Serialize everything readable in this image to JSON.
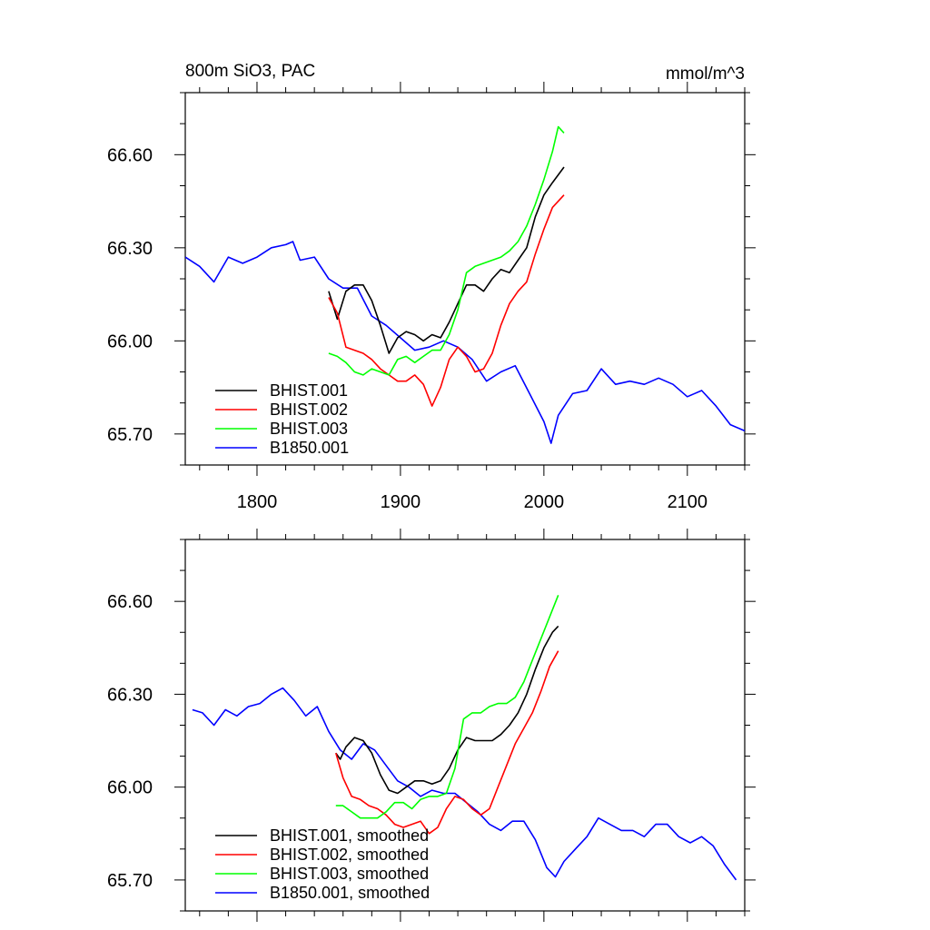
{
  "figure": {
    "title_left": "800m SiO3, PAC",
    "title_right": "mmol/m^3"
  },
  "chart_data": [
    {
      "type": "line",
      "title": "800m SiO3, PAC",
      "units": "mmol/m^3",
      "xlim": [
        1750,
        2140
      ],
      "ylim": [
        65.6,
        66.8
      ],
      "x_ticks": [
        1800,
        1900,
        2000,
        2100
      ],
      "x_tick_labels": [
        "1800",
        "1900",
        "2000",
        "2100"
      ],
      "y_ticks": [
        65.7,
        66.0,
        66.3,
        66.6
      ],
      "y_tick_labels": [
        "65.70",
        "66.00",
        "66.30",
        "66.60"
      ],
      "grid": false,
      "legend_position": "bottom-left",
      "series": [
        {
          "name": "BHIST.001",
          "color": "#000000",
          "x": [
            1850,
            1856,
            1862,
            1868,
            1874,
            1880,
            1886,
            1892,
            1898,
            1904,
            1910,
            1916,
            1922,
            1928,
            1934,
            1940,
            1946,
            1952,
            1958,
            1964,
            1970,
            1976,
            1982,
            1988,
            1994,
            2000,
            2006,
            2014
          ],
          "y": [
            66.16,
            66.07,
            66.16,
            66.18,
            66.18,
            66.13,
            66.05,
            65.96,
            66.01,
            66.03,
            66.02,
            66.0,
            66.02,
            66.01,
            66.06,
            66.12,
            66.18,
            66.18,
            66.16,
            66.2,
            66.23,
            66.22,
            66.26,
            66.3,
            66.4,
            66.47,
            66.51,
            66.56
          ]
        },
        {
          "name": "BHIST.002",
          "color": "#ff0000",
          "x": [
            1850,
            1856,
            1862,
            1868,
            1874,
            1880,
            1886,
            1892,
            1898,
            1904,
            1910,
            1916,
            1922,
            1928,
            1934,
            1940,
            1946,
            1952,
            1958,
            1964,
            1970,
            1976,
            1982,
            1988,
            1994,
            2000,
            2006,
            2014
          ],
          "y": [
            66.14,
            66.09,
            65.98,
            65.97,
            65.96,
            65.94,
            65.91,
            65.89,
            65.87,
            65.87,
            65.89,
            65.86,
            65.79,
            65.85,
            65.94,
            65.98,
            65.95,
            65.9,
            65.91,
            65.96,
            66.05,
            66.12,
            66.16,
            66.19,
            66.28,
            66.36,
            66.43,
            66.47
          ]
        },
        {
          "name": "BHIST.003",
          "color": "#00ff00",
          "x": [
            1850,
            1856,
            1862,
            1868,
            1874,
            1880,
            1886,
            1892,
            1898,
            1904,
            1910,
            1916,
            1922,
            1928,
            1934,
            1940,
            1946,
            1952,
            1958,
            1964,
            1970,
            1976,
            1982,
            1988,
            1994,
            2000,
            2006,
            2010,
            2014
          ],
          "y": [
            65.96,
            65.95,
            65.93,
            65.9,
            65.89,
            65.91,
            65.9,
            65.89,
            65.94,
            65.95,
            65.93,
            65.95,
            65.97,
            65.97,
            66.02,
            66.1,
            66.22,
            66.24,
            66.25,
            66.26,
            66.27,
            66.29,
            66.32,
            66.37,
            66.44,
            66.52,
            66.61,
            66.69,
            66.67
          ]
        },
        {
          "name": "B1850.001",
          "color": "#0000ff",
          "x": [
            1750,
            1760,
            1770,
            1780,
            1790,
            1800,
            1810,
            1820,
            1825,
            1830,
            1840,
            1850,
            1860,
            1870,
            1880,
            1890,
            1900,
            1910,
            1920,
            1930,
            1940,
            1950,
            1960,
            1970,
            1980,
            1990,
            2000,
            2005,
            2010,
            2020,
            2030,
            2040,
            2050,
            2060,
            2070,
            2080,
            2090,
            2100,
            2110,
            2120,
            2130,
            2140
          ],
          "y": [
            66.27,
            66.24,
            66.19,
            66.27,
            66.25,
            66.27,
            66.3,
            66.31,
            66.32,
            66.26,
            66.27,
            66.2,
            66.17,
            66.17,
            66.08,
            66.05,
            66.01,
            65.97,
            65.98,
            66.0,
            65.98,
            65.94,
            65.87,
            65.9,
            65.92,
            65.83,
            65.74,
            65.67,
            65.76,
            65.83,
            65.84,
            65.91,
            65.86,
            65.87,
            65.86,
            65.88,
            65.86,
            65.82,
            65.84,
            65.79,
            65.73,
            65.71
          ]
        }
      ]
    },
    {
      "type": "line",
      "xlim": [
        1750,
        2140
      ],
      "ylim": [
        65.6,
        66.8
      ],
      "x_ticks": [
        1800,
        1900,
        2000,
        2100
      ],
      "y_ticks": [
        65.7,
        66.0,
        66.3,
        66.6
      ],
      "y_tick_labels": [
        "65.70",
        "66.00",
        "66.30",
        "66.60"
      ],
      "grid": false,
      "legend_position": "bottom-left",
      "series": [
        {
          "name": "BHIST.001, smoothed",
          "color": "#000000",
          "x": [
            1855,
            1858,
            1862,
            1868,
            1874,
            1880,
            1886,
            1892,
            1898,
            1904,
            1910,
            1916,
            1922,
            1928,
            1934,
            1940,
            1946,
            1952,
            1958,
            1964,
            1970,
            1976,
            1982,
            1988,
            1994,
            2000,
            2006,
            2010
          ],
          "y": [
            66.11,
            66.09,
            66.13,
            66.16,
            66.15,
            66.11,
            66.04,
            65.99,
            65.98,
            66.0,
            66.02,
            66.02,
            66.01,
            66.02,
            66.06,
            66.12,
            66.16,
            66.15,
            66.15,
            66.15,
            66.17,
            66.2,
            66.24,
            66.3,
            66.38,
            66.45,
            66.5,
            66.52
          ]
        },
        {
          "name": "BHIST.002, smoothed",
          "color": "#ff0000",
          "x": [
            1855,
            1860,
            1866,
            1872,
            1878,
            1884,
            1890,
            1896,
            1902,
            1908,
            1914,
            1920,
            1926,
            1932,
            1938,
            1944,
            1950,
            1956,
            1962,
            1968,
            1974,
            1980,
            1986,
            1992,
            1998,
            2004,
            2010
          ],
          "y": [
            66.11,
            66.03,
            65.97,
            65.96,
            65.94,
            65.93,
            65.91,
            65.88,
            65.87,
            65.88,
            65.89,
            65.85,
            65.87,
            65.93,
            65.97,
            65.96,
            65.93,
            65.91,
            65.93,
            66.0,
            66.07,
            66.14,
            66.19,
            66.24,
            66.31,
            66.39,
            66.44
          ]
        },
        {
          "name": "BHIST.003, smoothed",
          "color": "#00ff00",
          "x": [
            1855,
            1860,
            1866,
            1872,
            1878,
            1884,
            1890,
            1896,
            1902,
            1908,
            1914,
            1920,
            1926,
            1932,
            1938,
            1944,
            1950,
            1956,
            1962,
            1968,
            1974,
            1980,
            1986,
            1992,
            1998,
            2004,
            2010
          ],
          "y": [
            65.94,
            65.94,
            65.92,
            65.9,
            65.9,
            65.9,
            65.92,
            65.95,
            65.95,
            65.93,
            65.96,
            65.97,
            65.97,
            65.98,
            66.06,
            66.22,
            66.24,
            66.24,
            66.26,
            66.27,
            66.27,
            66.29,
            66.34,
            66.41,
            66.48,
            66.55,
            66.62
          ]
        },
        {
          "name": "B1850.001, smoothed",
          "color": "#0000ff",
          "x": [
            1755,
            1762,
            1770,
            1778,
            1786,
            1794,
            1802,
            1810,
            1818,
            1826,
            1834,
            1842,
            1850,
            1858,
            1866,
            1874,
            1882,
            1890,
            1898,
            1906,
            1914,
            1922,
            1930,
            1938,
            1946,
            1954,
            1962,
            1970,
            1978,
            1986,
            1994,
            2002,
            2008,
            2014,
            2022,
            2030,
            2038,
            2046,
            2054,
            2062,
            2070,
            2078,
            2086,
            2094,
            2102,
            2110,
            2118,
            2126,
            2134
          ],
          "y": [
            66.25,
            66.24,
            66.2,
            66.25,
            66.23,
            66.26,
            66.27,
            66.3,
            66.32,
            66.28,
            66.23,
            66.26,
            66.18,
            66.12,
            66.09,
            66.14,
            66.12,
            66.07,
            66.02,
            66.0,
            65.97,
            65.99,
            65.98,
            65.98,
            65.95,
            65.92,
            65.88,
            65.86,
            65.89,
            65.89,
            65.83,
            65.74,
            65.71,
            65.76,
            65.8,
            65.84,
            65.9,
            65.88,
            65.86,
            65.86,
            65.84,
            65.88,
            65.88,
            65.84,
            65.82,
            65.84,
            65.81,
            65.75,
            65.7
          ]
        }
      ]
    }
  ]
}
